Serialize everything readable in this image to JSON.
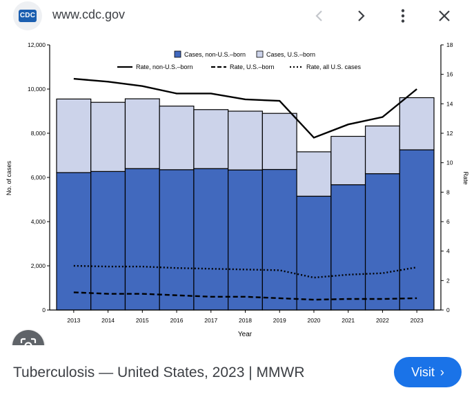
{
  "topbar": {
    "favicon_text": "CDC",
    "url": "www.cdc.gov"
  },
  "footer": {
    "caption": "Tuberculosis — United States, 2023 | MMWR",
    "visit_label": "Visit"
  },
  "colors": {
    "nonusborn": "#4169be",
    "usborn": "#ccd3ea",
    "visit": "#1a73e8"
  },
  "chart_data": {
    "type": "bar",
    "stacked": true,
    "xlabel": "Year",
    "ylabel": "No. of cases",
    "y2label": "Rate",
    "categories": [
      "2013",
      "2014",
      "2015",
      "2016",
      "2017",
      "2018",
      "2019",
      "2020",
      "2021",
      "2022",
      "2023"
    ],
    "ylim": [
      0,
      12000
    ],
    "y_ticks": [
      "0",
      "2,000",
      "4,000",
      "6,000",
      "8,000",
      "10,000",
      "12,000"
    ],
    "y2lim": [
      0,
      18
    ],
    "y2_ticks": [
      "0",
      "2",
      "4",
      "6",
      "8",
      "10",
      "12",
      "14",
      "16",
      "18"
    ],
    "series": [
      {
        "name": "Cases, non-U.S.–born",
        "values": [
          6220,
          6270,
          6400,
          6350,
          6400,
          6340,
          6360,
          5150,
          5670,
          6170,
          7250
        ]
      },
      {
        "name": "Cases, U.S.–born",
        "values": [
          3330,
          3130,
          3160,
          2880,
          2670,
          2660,
          2540,
          2010,
          2190,
          2160,
          2360
        ]
      }
    ],
    "lines": [
      {
        "name": "Rate, non-U.S.–born",
        "style": "solid",
        "values": [
          15.7,
          15.5,
          15.2,
          14.7,
          14.7,
          14.3,
          14.2,
          11.7,
          12.6,
          13.1,
          15.0
        ]
      },
      {
        "name": "Rate, U.S.–born",
        "style": "dashed",
        "values": [
          1.2,
          1.1,
          1.1,
          1.0,
          0.9,
          0.9,
          0.8,
          0.7,
          0.75,
          0.75,
          0.8
        ]
      },
      {
        "name": "Rate, all U.S. cases",
        "style": "dotted",
        "values": [
          3.0,
          2.95,
          2.95,
          2.85,
          2.8,
          2.75,
          2.7,
          2.2,
          2.4,
          2.5,
          2.9
        ]
      }
    ],
    "legend_position": "top-center",
    "grid": false
  }
}
